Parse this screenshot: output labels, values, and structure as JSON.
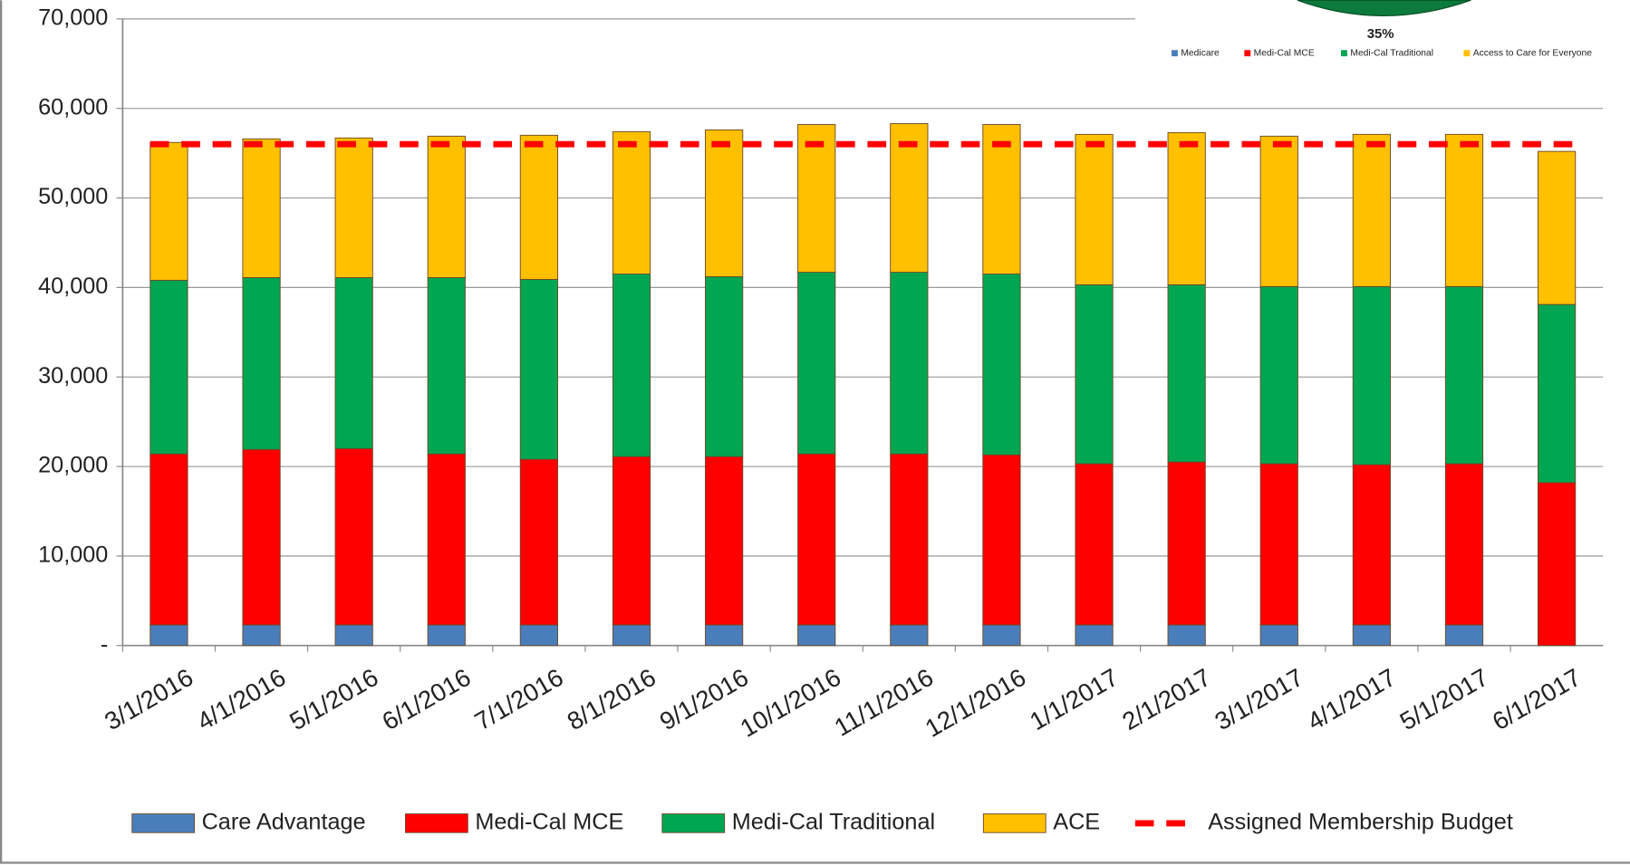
{
  "chart_data": [
    {
      "type": "bar",
      "stacked": true,
      "categories": [
        "3/1/2016",
        "4/1/2016",
        "5/1/2016",
        "6/1/2016",
        "7/1/2016",
        "8/1/2016",
        "9/1/2016",
        "10/1/2016",
        "11/1/2016",
        "12/1/2016",
        "1/1/2017",
        "2/1/2017",
        "3/1/2017",
        "4/1/2017",
        "5/1/2017",
        "6/1/2017"
      ],
      "series": [
        {
          "name": "Care Advantage",
          "color": "#4a7ebb",
          "values": [
            2300,
            2300,
            2300,
            2300,
            2300,
            2300,
            2300,
            2300,
            2300,
            2300,
            2300,
            2300,
            2300,
            2300,
            2300,
            0
          ]
        },
        {
          "name": "Medi-Cal MCE",
          "color": "#ff0000",
          "values": [
            19100,
            19600,
            19700,
            19100,
            18500,
            18800,
            18800,
            19100,
            19100,
            19000,
            18000,
            18200,
            18000,
            17900,
            18000,
            18200
          ]
        },
        {
          "name": "Medi-Cal Traditional",
          "color": "#00a651",
          "values": [
            19400,
            19200,
            19100,
            19700,
            20100,
            20400,
            20100,
            20300,
            20300,
            20200,
            20000,
            19800,
            19800,
            19900,
            19800,
            19900
          ]
        },
        {
          "name": "ACE",
          "color": "#ffc000",
          "values": [
            15400,
            15500,
            15600,
            15800,
            16100,
            15900,
            16400,
            16500,
            16600,
            16700,
            16800,
            17000,
            16800,
            17000,
            17000,
            17100
          ]
        }
      ],
      "line": {
        "name": "Assigned Membership Budget",
        "color": "#ff0000",
        "values": [
          56000,
          56000,
          56000,
          56000,
          56000,
          56000,
          56000,
          56000,
          56000,
          56000,
          56000,
          56000,
          56000,
          56000,
          56000,
          56000
        ]
      },
      "ylim": [
        0,
        70000
      ],
      "yticks": [
        {
          "value": 0,
          "label": "-"
        },
        {
          "value": 10000,
          "label": "10,000"
        },
        {
          "value": 20000,
          "label": "20,000"
        },
        {
          "value": 30000,
          "label": "30,000"
        },
        {
          "value": 40000,
          "label": "40,000"
        },
        {
          "value": 50000,
          "label": "50,000"
        },
        {
          "value": 60000,
          "label": "60,000"
        },
        {
          "value": 70000,
          "label": "70,000"
        }
      ],
      "grid": true,
      "legend": "bottom"
    },
    {
      "type": "pie",
      "categories": [
        "Medicare",
        "Medi-Cal MCE",
        "Medi-Cal Traditional",
        "Access to Care for Everyone"
      ],
      "colors": [
        "#4a7ebb",
        "#ff0000",
        "#00a651",
        "#ffc000"
      ],
      "values": [
        null,
        null,
        35,
        null
      ],
      "value_labels": [
        null,
        null,
        "35%",
        null
      ]
    }
  ]
}
